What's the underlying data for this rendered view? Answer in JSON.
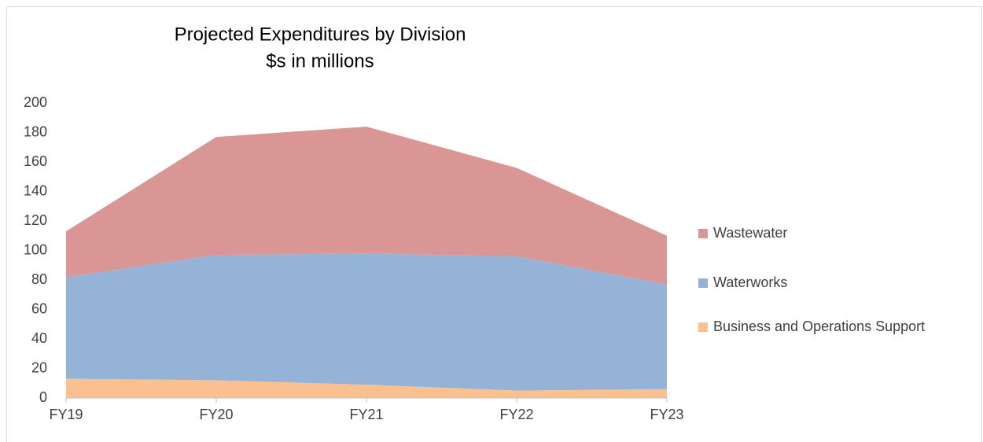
{
  "chart_data": {
    "type": "stacked_area",
    "title": "Projected Expenditures by Division",
    "subtitle": "$s in millions",
    "categories": [
      "FY19",
      "FY20",
      "FY21",
      "FY22",
      "FY23"
    ],
    "series": [
      {
        "name": "Business and Operations Support",
        "color": "#fac090",
        "values": [
          13,
          12,
          9,
          5,
          6
        ]
      },
      {
        "name": "Waterworks",
        "color": "#95b3d7",
        "values": [
          69,
          85,
          89,
          91,
          71
        ]
      },
      {
        "name": "Wastewater",
        "color": "#d99694",
        "values": [
          31,
          80,
          86,
          60,
          33
        ]
      }
    ],
    "ylim": [
      0,
      200
    ],
    "yticks": [
      0,
      20,
      40,
      60,
      80,
      100,
      120,
      140,
      160,
      180,
      200
    ],
    "grid": false,
    "legend": "right"
  }
}
